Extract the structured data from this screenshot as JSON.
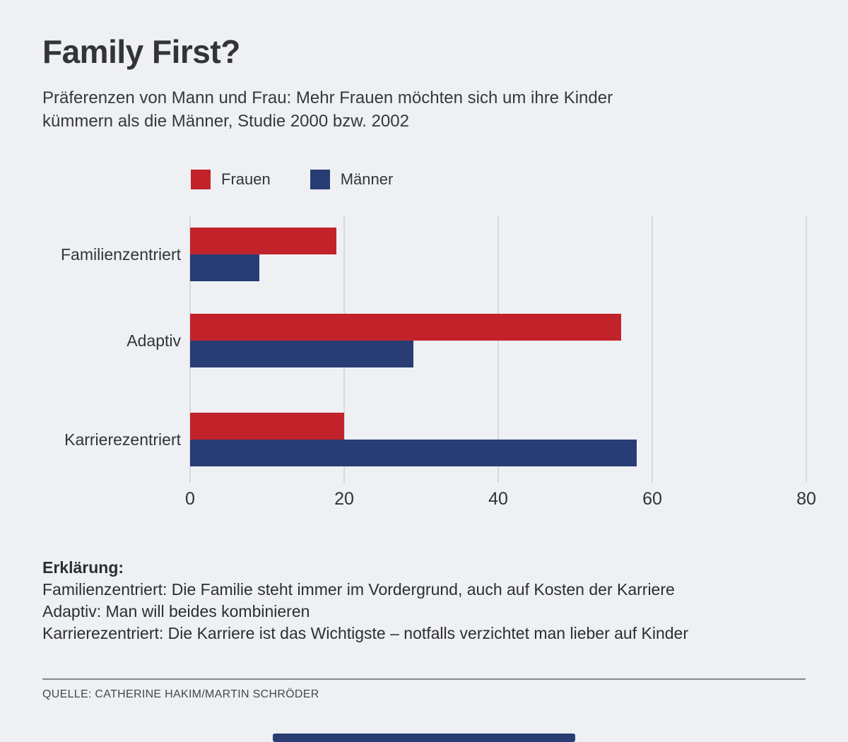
{
  "title": "Family First?",
  "subtitle": {
    "lines": [
      "Präferenzen von Mann und Frau: Mehr Frauen möchten sich um ihre Kinder",
      "kümmern als die Männer, Studie 2000 bzw. 2002"
    ]
  },
  "legend": [
    {
      "label": "Frauen",
      "color": "#c2232b"
    },
    {
      "label": "Männer",
      "color": "#273d74"
    }
  ],
  "chart_data": {
    "type": "bar",
    "orientation": "horizontal",
    "title": "Family First?",
    "categories": [
      "Familienzentriert",
      "Adaptiv",
      "Karrierezentriert"
    ],
    "series": [
      {
        "name": "Frauen",
        "color": "#c2232b",
        "values": [
          19,
          56,
          20
        ]
      },
      {
        "name": "Männer",
        "color": "#273d74",
        "values": [
          9,
          29,
          58
        ]
      }
    ],
    "xlim": [
      0,
      80
    ],
    "xticks": [
      0,
      20,
      40,
      60,
      80
    ],
    "grid": true,
    "legend_position": "top"
  },
  "explanation": {
    "heading": "Erklärung:",
    "lines": [
      "Familienzentriert: Die Familie steht immer im Vordergrund, auch auf Kosten der Karriere",
      "Adaptiv: Man will beides kombinieren",
      "Karrierezentriert: Die Karriere ist das Wichtigste – notfalls verzichtet man lieber auf Kinder"
    ]
  },
  "source": "QUELLE: CATHERINE HAKIM/MARTIN SCHRÖDER",
  "colors": {
    "background": "#eef0f4",
    "frauen": "#c2232b",
    "maenner": "#273d74",
    "gridline": "#d7d9de",
    "text": "#323438"
  }
}
